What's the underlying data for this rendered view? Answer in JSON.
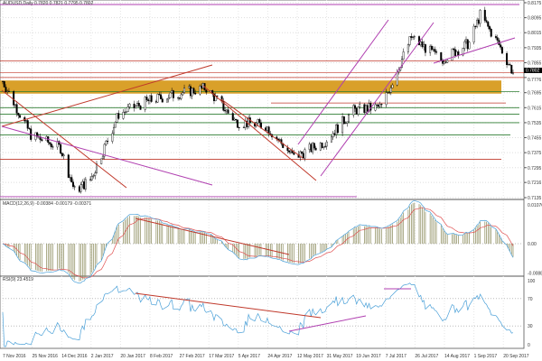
{
  "header": {
    "symbol_info": "AUDUSD,Daily  0.7820 0.7821 0.7795 0.7802"
  },
  "macd_header": "MACD(12,26,9) -0.00384 -0.00179 -0.00371",
  "rsi_header": "RSI(9) 23.4519",
  "colors": {
    "bull": "#2e8b57",
    "bear": "#000000",
    "zone": "#d9a02a",
    "resistance": "#c0392b",
    "support": "#2e7d32",
    "channel": "#b03fb0",
    "macd_signal": "#e05050",
    "macd_line": "#4aa0d8",
    "rsi_line": "#4aa0d8"
  },
  "chart_data": [
    {
      "type": "candlestick",
      "title": "AUDUSD,Daily",
      "ylim": [
        0.7135,
        0.8175
      ],
      "price_ticks": [
        "0.8175",
        "0.8095",
        "0.8015",
        "0.7935",
        "0.7855",
        "0.7776",
        "0.7695",
        "0.7615",
        "0.7535",
        "0.7455",
        "0.7375",
        "0.7295",
        "0.7216",
        "0.7135"
      ],
      "current_price": "0.7802",
      "x_ticks": [
        "7 Nov 2016",
        "25 Nov 2016",
        "14 Dec 2016",
        "2 Jan 2017",
        "20 Jan 2017",
        "8 Feb 2017",
        "27 Feb 2017",
        "17 Mar 2017",
        "5 Apr 2017",
        "24 Apr 2017",
        "12 May 2017",
        "31 May 2017",
        "19 Jun 2017",
        "7 Jul 2017",
        "26 Jul 2017",
        "14 Aug 2017",
        "1 Sep 2017",
        "20 Sep 2017"
      ],
      "approx_closes": [
        {
          "x": "7 Nov 2016",
          "y": 0.7756
        },
        {
          "x": "25 Nov 2016",
          "y": 0.747
        },
        {
          "x": "14 Dec 2016",
          "y": 0.74
        },
        {
          "x": "23 Dec 2016",
          "y": 0.717
        },
        {
          "x": "2 Jan 2017",
          "y": 0.723
        },
        {
          "x": "20 Jan 2017",
          "y": 0.758
        },
        {
          "x": "8 Feb 2017",
          "y": 0.765
        },
        {
          "x": "27 Feb 2017",
          "y": 0.769
        },
        {
          "x": "17 Mar 2017",
          "y": 0.772
        },
        {
          "x": "5 Apr 2017",
          "y": 0.754
        },
        {
          "x": "24 Apr 2017",
          "y": 0.752
        },
        {
          "x": "12 May 2017",
          "y": 0.735
        },
        {
          "x": "31 May 2017",
          "y": 0.743
        },
        {
          "x": "19 Jun 2017",
          "y": 0.76
        },
        {
          "x": "7 Jul 2017",
          "y": 0.762
        },
        {
          "x": "26 Jul 2017",
          "y": 0.799
        },
        {
          "x": "14 Aug 2017",
          "y": 0.787
        },
        {
          "x": "1 Sep 2017",
          "y": 0.796
        },
        {
          "x": "8 Sep 2017",
          "y": 0.811
        },
        {
          "x": "20 Sep 2017",
          "y": 0.795
        },
        {
          "x": "29 Sep 2017",
          "y": 0.7802
        }
      ],
      "zone": [
        0.769,
        0.776
      ]
    },
    {
      "type": "line",
      "title": "MACD(12,26,9)",
      "y_ticks": [
        "0.01076",
        "0.00",
        "-0.0088"
      ]
    },
    {
      "type": "line",
      "title": "RSI(9)",
      "y_ticks": [
        "100",
        "70",
        "30",
        "0"
      ]
    }
  ]
}
